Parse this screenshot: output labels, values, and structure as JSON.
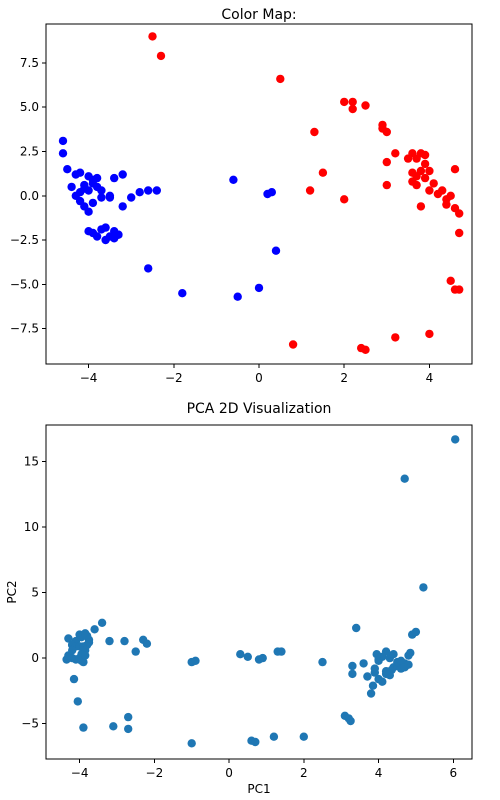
{
  "chart_data": [
    {
      "type": "scatter",
      "title": "Color Map:",
      "xlabel": "",
      "ylabel": "",
      "xlim": [
        -5.0,
        5.0
      ],
      "ylim": [
        -9.5,
        9.7
      ],
      "xticks": [
        -4,
        -2,
        0,
        2,
        4
      ],
      "yticks": [
        -7.5,
        -5.0,
        -2.5,
        0.0,
        2.5,
        5.0,
        7.5
      ],
      "xtick_labels": [
        "−4",
        "−2",
        "0",
        "2",
        "4"
      ],
      "ytick_labels": [
        "−7.5",
        "−5.0",
        "−2.5",
        "0.0",
        "2.5",
        "5.0",
        "7.5"
      ],
      "grid": false,
      "series": [
        {
          "color": "#0000ff",
          "x": [
            -4.6,
            -4.6,
            -4.5,
            -4.4,
            -4.3,
            -4.2,
            -4.2,
            -4.1,
            -4.0,
            -3.9,
            -4.1,
            -4.0,
            -3.9,
            -3.8,
            -3.7,
            -4.0,
            -3.9,
            -3.8,
            -3.7,
            -3.6,
            -3.5,
            -3.4,
            -3.3,
            -3.4,
            -3.5,
            -3.2,
            -3.0,
            -2.8,
            -2.6,
            -2.4,
            -3.9,
            -3.7,
            -3.5,
            -3.4,
            -3.3,
            -3.6,
            -4.2,
            -4.0,
            -3.8,
            -4.3,
            -2.6,
            -1.8,
            -0.6,
            -0.5,
            0.0,
            0.3,
            0.4,
            0.2,
            -3.2,
            -4.1
          ],
          "y": [
            3.1,
            2.4,
            1.5,
            0.5,
            1.2,
            0.2,
            -0.3,
            0.6,
            0.3,
            0.7,
            -0.6,
            -0.9,
            -0.4,
            0.5,
            -0.1,
            -2.0,
            -2.1,
            -2.3,
            -1.9,
            -2.5,
            -2.3,
            -2.0,
            -2.2,
            1.0,
            0.0,
            1.2,
            -0.1,
            0.2,
            0.3,
            0.3,
            0.9,
            0.3,
            -0.1,
            -2.4,
            -2.2,
            -1.8,
            1.3,
            1.1,
            1.0,
            0.0,
            -4.1,
            -5.5,
            0.9,
            -5.7,
            -5.2,
            0.2,
            -3.1,
            0.1,
            -0.6,
            0.4
          ]
        },
        {
          "color": "#ff0000",
          "x": [
            -2.5,
            -2.3,
            0.5,
            1.3,
            1.2,
            1.5,
            2.0,
            2.2,
            2.2,
            2.5,
            2.9,
            2.9,
            3.0,
            3.0,
            3.2,
            3.5,
            3.6,
            3.7,
            3.8,
            3.9,
            3.7,
            3.8,
            3.9,
            3.6,
            3.7,
            3.9,
            4.0,
            4.0,
            4.1,
            4.2,
            4.3,
            4.4,
            4.4,
            4.5,
            4.6,
            4.7,
            4.5,
            4.6,
            4.7,
            3.0,
            2.0,
            3.8,
            0.8,
            2.4,
            2.5,
            3.2,
            4.0,
            4.6,
            4.7,
            3.6
          ],
          "y": [
            9.0,
            7.9,
            6.6,
            3.6,
            0.3,
            1.3,
            5.3,
            5.3,
            4.9,
            5.1,
            4.0,
            3.8,
            3.6,
            1.9,
            2.4,
            2.1,
            2.4,
            2.1,
            2.4,
            2.3,
            1.1,
            1.4,
            1.0,
            1.3,
            0.6,
            1.8,
            1.4,
            0.3,
            0.7,
            0.1,
            0.3,
            -0.2,
            -0.5,
            0.0,
            1.5,
            -2.1,
            -4.8,
            -5.3,
            -5.3,
            0.6,
            -0.2,
            -0.6,
            -8.4,
            -8.6,
            -8.7,
            -8.0,
            -7.8,
            -0.7,
            -1.0,
            0.8
          ]
        }
      ]
    },
    {
      "type": "scatter",
      "title": "PCA 2D Visualization",
      "xlabel": "PC1",
      "ylabel": "PC2",
      "xlim": [
        -4.9,
        6.5
      ],
      "ylim": [
        -7.7,
        17.8
      ],
      "xticks": [
        -4,
        -2,
        0,
        2,
        4,
        6
      ],
      "yticks": [
        -5,
        0,
        5,
        10,
        15
      ],
      "xtick_labels": [
        "−4",
        "−2",
        "0",
        "2",
        "4",
        "6"
      ],
      "ytick_labels": [
        "−5",
        "0",
        "5",
        "10",
        "15"
      ],
      "grid": false,
      "series": [
        {
          "color": "#1f77b4",
          "x": [
            -4.3,
            -4.2,
            -4.1,
            -4.0,
            -3.95,
            -3.9,
            -3.85,
            -3.8,
            -3.75,
            -4.2,
            -4.1,
            -4.0,
            -3.95,
            -3.9,
            -3.85,
            -4.35,
            -4.3,
            -4.2,
            -4.1,
            -4.0,
            -3.9,
            -3.8,
            -4.15,
            -4.05,
            -3.95,
            -3.85,
            -3.75,
            -3.6,
            -3.4,
            -3.2,
            -2.8,
            -2.5,
            -2.3,
            -2.2,
            -4.2,
            -3.9,
            -3.1,
            -2.7,
            -2.7,
            -1.0,
            -0.9,
            -1.0,
            0.3,
            0.5,
            0.6,
            0.7,
            0.8,
            0.9,
            1.2,
            1.3,
            1.4,
            2.0,
            2.5,
            3.1,
            3.2,
            3.25,
            3.3,
            3.3,
            3.4,
            3.6,
            3.7,
            3.8,
            3.85,
            3.9,
            4.0,
            4.1,
            4.2,
            4.3,
            4.35,
            4.4,
            4.5,
            4.6,
            4.7,
            4.8,
            4.85,
            4.9,
            5.0,
            4.0,
            4.1,
            4.3,
            4.5,
            4.6,
            4.8,
            3.9,
            4.2,
            4.7,
            4.4,
            4.2,
            4.0,
            3.95,
            5.2,
            4.7,
            6.05
          ],
          "y": [
            1.5,
            1.0,
            1.3,
            1.8,
            1.6,
            0.8,
            1.9,
            1.7,
            1.4,
            0.0,
            -0.1,
            0.0,
            0.3,
            -0.3,
            0.6,
            -0.1,
            0.2,
            1.0,
            0.9,
            0.9,
            0.9,
            1.0,
            -1.6,
            -3.3,
            -0.2,
            0.2,
            1.2,
            2.2,
            2.7,
            1.3,
            1.3,
            0.5,
            1.4,
            1.1,
            0.6,
            -5.3,
            -5.2,
            -4.5,
            -5.4,
            -0.3,
            -0.2,
            -6.5,
            0.3,
            0.1,
            -6.3,
            -6.4,
            -0.1,
            0.0,
            -6.0,
            0.5,
            0.5,
            -6.0,
            -0.3,
            -4.4,
            -4.6,
            -4.8,
            -0.6,
            -1.2,
            2.3,
            -0.4,
            -1.4,
            -2.7,
            -2.1,
            -0.8,
            -1.6,
            -1.8,
            -1.2,
            -1.3,
            -0.9,
            -0.7,
            -0.6,
            -0.8,
            -0.4,
            -0.5,
            0.4,
            1.8,
            2.0,
            -0.1,
            0.1,
            0.0,
            -0.3,
            -0.2,
            0.2,
            -1.1,
            -1.0,
            -0.7,
            0.3,
            0.5,
            -0.2,
            0.3,
            5.4,
            13.7,
            16.7
          ]
        }
      ]
    }
  ]
}
